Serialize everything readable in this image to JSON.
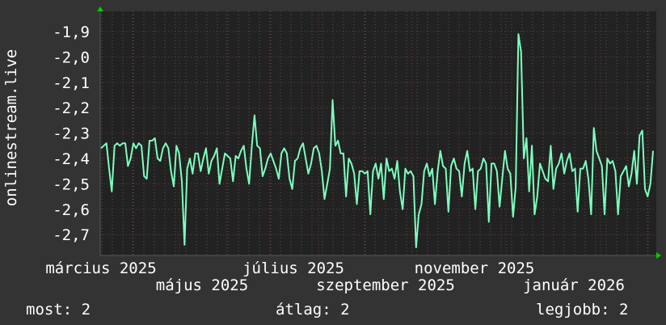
{
  "chart_data": {
    "type": "line",
    "ylabel": "onlinestream.live",
    "ylim": [
      -2.78,
      -1.82
    ],
    "yticks": [
      "-1,9",
      "-2,0",
      "-2,1",
      "-2,2",
      "-2,3",
      "-2,4",
      "-2,5",
      "-2,6",
      "-2,7"
    ],
    "ytick_values": [
      -1.9,
      -2.0,
      -2.1,
      -2.2,
      -2.3,
      -2.4,
      -2.5,
      -2.6,
      -2.7
    ],
    "xticks": [
      "március 2025",
      "május 2025",
      "július 2025",
      "szeptember 2025",
      "november 2025",
      "január 2026"
    ],
    "grid": true,
    "series_color": "#7dffbe",
    "background": "#222222",
    "values": [
      -2.36,
      -2.35,
      -2.34,
      -2.44,
      -2.53,
      -2.35,
      -2.34,
      -2.35,
      -2.34,
      -2.34,
      -2.43,
      -2.4,
      -2.34,
      -2.36,
      -2.34,
      -2.35,
      -2.47,
      -2.48,
      -2.33,
      -2.33,
      -2.32,
      -2.4,
      -2.41,
      -2.36,
      -2.34,
      -2.36,
      -2.45,
      -2.51,
      -2.35,
      -2.38,
      -2.49,
      -2.74,
      -2.44,
      -2.4,
      -2.46,
      -2.38,
      -2.38,
      -2.45,
      -2.4,
      -2.36,
      -2.46,
      -2.41,
      -2.39,
      -2.36,
      -2.5,
      -2.44,
      -2.38,
      -2.39,
      -2.4,
      -2.49,
      -2.39,
      -2.4,
      -2.37,
      -2.35,
      -2.44,
      -2.5,
      -2.35,
      -2.23,
      -2.35,
      -2.36,
      -2.47,
      -2.44,
      -2.4,
      -2.38,
      -2.41,
      -2.44,
      -2.48,
      -2.38,
      -2.36,
      -2.38,
      -2.48,
      -2.52,
      -2.41,
      -2.4,
      -2.36,
      -2.34,
      -2.4,
      -2.46,
      -2.42,
      -2.36,
      -2.35,
      -2.38,
      -2.45,
      -2.56,
      -2.5,
      -2.44,
      -2.17,
      -2.35,
      -2.33,
      -2.38,
      -2.38,
      -2.55,
      -2.4,
      -2.42,
      -2.46,
      -2.58,
      -2.45,
      -2.45,
      -2.46,
      -2.45,
      -2.62,
      -2.45,
      -2.42,
      -2.48,
      -2.42,
      -2.56,
      -2.4,
      -2.45,
      -2.44,
      -2.48,
      -2.41,
      -2.53,
      -2.6,
      -2.44,
      -2.46,
      -2.45,
      -2.47,
      -2.75,
      -2.62,
      -2.58,
      -2.45,
      -2.42,
      -2.47,
      -2.44,
      -2.58,
      -2.45,
      -2.37,
      -2.43,
      -2.44,
      -2.61,
      -2.43,
      -2.4,
      -2.44,
      -2.45,
      -2.55,
      -2.42,
      -2.37,
      -2.45,
      -2.44,
      -2.6,
      -2.45,
      -2.44,
      -2.4,
      -2.42,
      -2.65,
      -2.42,
      -2.42,
      -2.45,
      -2.59,
      -2.48,
      -2.37,
      -2.44,
      -2.46,
      -2.63,
      -2.51,
      -1.91,
      -1.98,
      -2.4,
      -2.32,
      -2.53,
      -2.35,
      -2.62,
      -2.55,
      -2.42,
      -2.45,
      -2.48,
      -2.49,
      -2.35,
      -2.52,
      -2.44,
      -2.42,
      -2.38,
      -2.46,
      -2.41,
      -2.38,
      -2.45,
      -2.44,
      -2.61,
      -2.44,
      -2.44,
      -2.41,
      -2.48,
      -2.62,
      -2.28,
      -2.37,
      -2.4,
      -2.43,
      -2.62,
      -2.4,
      -2.42,
      -2.41,
      -2.45,
      -2.62,
      -2.47,
      -2.45,
      -2.43,
      -2.51,
      -2.46,
      -2.37,
      -2.5,
      -2.31,
      -2.29,
      -2.52,
      -2.55,
      -2.5,
      -2.37
    ]
  },
  "legend": {
    "current": "most: 2",
    "average": "átlag: 2",
    "best": "legjobb: 2"
  }
}
